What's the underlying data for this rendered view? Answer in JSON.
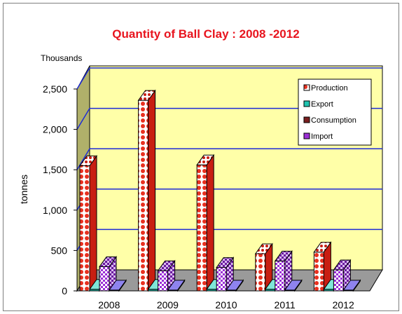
{
  "chart_data": {
    "type": "bar",
    "title": "Quantity of Ball Clay : 2008 -2012",
    "units_label": "Thousands",
    "ylabel": "tonnes",
    "xlabel": "",
    "categories": [
      "2008",
      "2009",
      "2010",
      "2011",
      "2012"
    ],
    "ylim": [
      0,
      2500
    ],
    "yticks": [
      0,
      500,
      1000,
      1500,
      2000,
      2500
    ],
    "ytick_labels": [
      "0",
      "500",
      "1,000",
      "1,500",
      "2,000",
      "2,500"
    ],
    "grid": true,
    "legend_position": "top-right",
    "series": [
      {
        "name": "Production",
        "values": [
          1550,
          2360,
          1560,
          460,
          480
        ],
        "color": "#e8301f"
      },
      {
        "name": "Export",
        "values": [
          20,
          20,
          20,
          20,
          20
        ],
        "color": "#20a99a"
      },
      {
        "name": "Consumption",
        "values": [
          300,
          250,
          290,
          370,
          260
        ],
        "color": "#9b2fd6"
      },
      {
        "name": "Import",
        "values": [
          10,
          10,
          10,
          10,
          10
        ],
        "color": "#4a3ad0"
      }
    ],
    "colors": {
      "title": "#e8141e",
      "plot_back": "#ffffa8",
      "plot_side": "#b0b06a",
      "floor": "#9a9a9a",
      "grid": "#1d2bd6"
    }
  }
}
